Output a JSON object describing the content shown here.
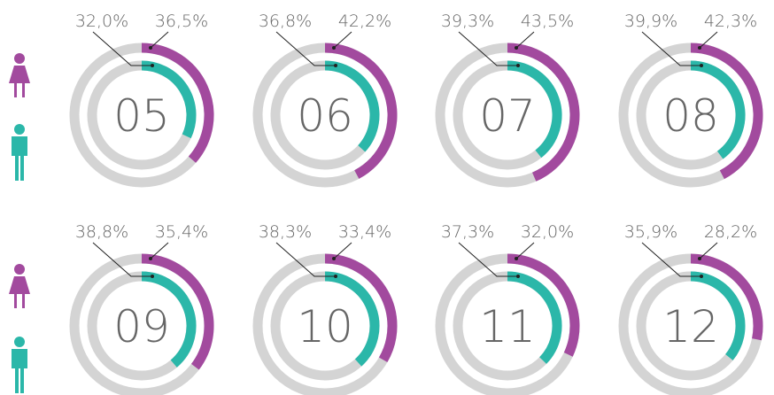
{
  "chart_data": {
    "type": "nested-donut",
    "categories": [
      "05",
      "06",
      "07",
      "08",
      "09",
      "10",
      "11",
      "12"
    ],
    "ylim": [
      0,
      100
    ],
    "series": [
      {
        "color": "#a24a9e",
        "values": [
          36.5,
          42.2,
          43.5,
          42.3,
          35.4,
          33.4,
          32.0,
          28.2
        ],
        "value_labels": [
          "36,5%",
          "42,2%",
          "43,5%",
          "42,3%",
          "35,4%",
          "33,4%",
          "32,0%",
          "28,2%"
        ]
      },
      {
        "color": "#2bb7a9",
        "values": [
          32.0,
          36.8,
          39.3,
          39.9,
          38.8,
          38.3,
          37.3,
          35.9
        ],
        "value_labels": [
          "32,0%",
          "36,8%",
          "39,3%",
          "39,9%",
          "38,8%",
          "38,3%",
          "37,3%",
          "35,9%"
        ]
      }
    ],
    "track_color": "#d4d4d4"
  }
}
